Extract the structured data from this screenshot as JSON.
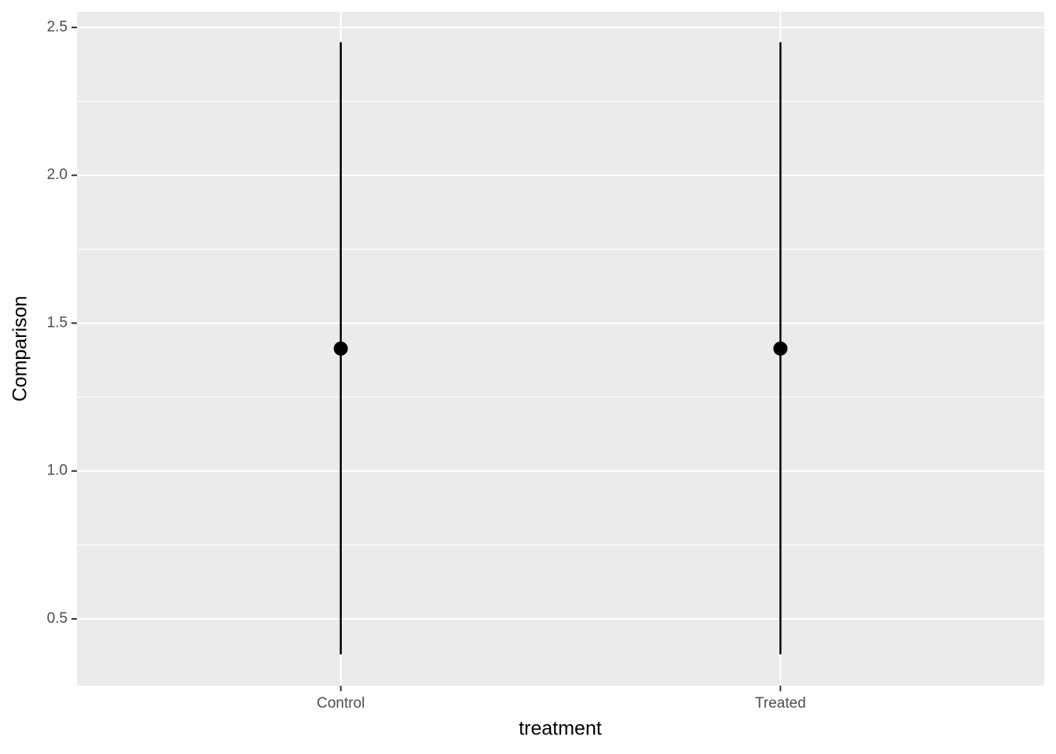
{
  "chart_data": {
    "type": "pointrange",
    "x_label": "treatment",
    "y_label": "Comparison",
    "categories": [
      "Control",
      "Treated"
    ],
    "values": [
      1.414,
      1.414
    ],
    "lower": [
      0.38,
      0.38
    ],
    "upper": [
      2.45,
      2.45
    ],
    "color": "#000000",
    "ylim": [
      0.274,
      2.553
    ],
    "yticks": [
      0.5,
      {
        "value": 1,
        "label": "1.0"
      },
      1.5,
      {
        "value": 2,
        "label": "2.0"
      },
      2.5
    ],
    "minor_yticks": [
      0.75,
      1.25,
      1.75,
      2.25
    ],
    "grid": true
  }
}
